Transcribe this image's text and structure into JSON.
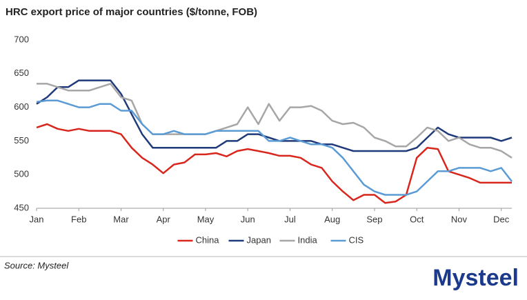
{
  "chart_data": {
    "type": "line",
    "title": "HRC export price of major countries ($/tonne, FOB)",
    "x": [
      0,
      0.25,
      0.5,
      0.75,
      1,
      1.25,
      1.5,
      1.75,
      2,
      2.25,
      2.5,
      2.75,
      3,
      3.25,
      3.5,
      3.75,
      4,
      4.25,
      4.5,
      4.75,
      5,
      5.25,
      5.5,
      5.75,
      6,
      6.25,
      6.5,
      6.75,
      7,
      7.25,
      7.5,
      7.75,
      8,
      8.25,
      8.5,
      8.75,
      9,
      9.25,
      9.5,
      9.75,
      10,
      10.25,
      10.5,
      10.75,
      11,
      11.25
    ],
    "xlim": [
      0,
      11.25
    ],
    "xticks": [
      {
        "value": 0,
        "label": "Jan"
      },
      {
        "value": 1,
        "label": "Feb"
      },
      {
        "value": 2,
        "label": "Mar"
      },
      {
        "value": 3,
        "label": "Apr"
      },
      {
        "value": 4,
        "label": "May"
      },
      {
        "value": 5,
        "label": "Jun"
      },
      {
        "value": 6,
        "label": "Jul"
      },
      {
        "value": 7,
        "label": "Aug"
      },
      {
        "value": 8,
        "label": "Sep"
      },
      {
        "value": 9,
        "label": "Oct"
      },
      {
        "value": 10,
        "label": "Nov"
      },
      {
        "value": 11,
        "label": "Dec"
      }
    ],
    "ylim": [
      450,
      700
    ],
    "yticks": [
      450,
      500,
      550,
      600,
      650,
      700
    ],
    "grid": false,
    "legend": "bottom",
    "series": [
      {
        "name": "China",
        "color": "#d9261c",
        "values": [
          570,
          575,
          568,
          565,
          568,
          565,
          565,
          565,
          560,
          540,
          525,
          515,
          502,
          515,
          518,
          530,
          530,
          532,
          527,
          535,
          538,
          535,
          532,
          528,
          528,
          525,
          515,
          510,
          490,
          475,
          462,
          470,
          470,
          458,
          460,
          470,
          525,
          540,
          538,
          505,
          500,
          495,
          488,
          488,
          488,
          488
        ]
      },
      {
        "name": "Japan",
        "color": "#1f3a7a",
        "values": [
          605,
          615,
          630,
          630,
          640,
          640,
          640,
          640,
          620,
          590,
          560,
          540,
          540,
          540,
          540,
          540,
          540,
          540,
          550,
          550,
          560,
          560,
          555,
          550,
          550,
          550,
          550,
          545,
          545,
          540,
          535,
          535,
          535,
          535,
          535,
          535,
          540,
          555,
          570,
          560,
          555,
          555,
          555,
          555,
          550,
          555
        ]
      },
      {
        "name": "India",
        "color": "#a6a6a6",
        "values": [
          635,
          635,
          630,
          625,
          625,
          625,
          630,
          635,
          615,
          610,
          575,
          560,
          560,
          560,
          560,
          560,
          560,
          565,
          570,
          575,
          600,
          575,
          605,
          580,
          600,
          600,
          602,
          595,
          580,
          575,
          577,
          570,
          555,
          550,
          542,
          542,
          555,
          570,
          565,
          550,
          555,
          545,
          540,
          540,
          535,
          525
        ]
      },
      {
        "name": "CIS",
        "color": "#5b9bd5",
        "values": [
          608,
          610,
          610,
          605,
          600,
          600,
          605,
          605,
          595,
          595,
          575,
          560,
          560,
          565,
          560,
          560,
          560,
          565,
          565,
          565,
          565,
          565,
          550,
          550,
          555,
          550,
          545,
          545,
          540,
          525,
          505,
          485,
          475,
          470,
          470,
          470,
          475,
          490,
          505,
          505,
          510,
          510,
          510,
          505,
          510,
          490
        ]
      }
    ]
  },
  "source": "Source: Mysteel",
  "logo": "Mysteel"
}
